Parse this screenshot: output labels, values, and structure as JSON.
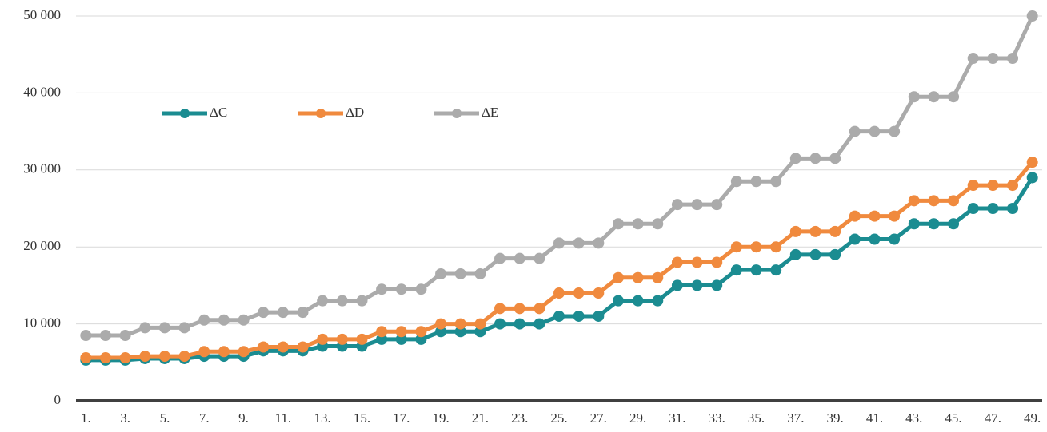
{
  "chart_data": {
    "type": "line",
    "categories": [
      "1.",
      null,
      "3.",
      null,
      "5.",
      null,
      "7.",
      null,
      "9.",
      null,
      "11.",
      null,
      "13.",
      null,
      "15.",
      null,
      "17.",
      null,
      "19.",
      null,
      "21.",
      null,
      "23.",
      null,
      "25.",
      null,
      "27.",
      null,
      "29.",
      null,
      "31.",
      null,
      "33.",
      null,
      "35.",
      null,
      "37.",
      null,
      "39.",
      null,
      "41.",
      null,
      "43.",
      null,
      "45.",
      null,
      "47.",
      null,
      "49."
    ],
    "series": [
      {
        "name": "ΔC",
        "color": "#1b8c91",
        "values": [
          5300,
          5300,
          5300,
          5500,
          5500,
          5500,
          5800,
          5800,
          5800,
          6500,
          6500,
          6500,
          7100,
          7100,
          7100,
          8000,
          8000,
          8000,
          9000,
          9000,
          9000,
          10000,
          10000,
          10000,
          11000,
          11000,
          11000,
          13000,
          13000,
          13000,
          15000,
          15000,
          15000,
          17000,
          17000,
          17000,
          19000,
          19000,
          19000,
          21000,
          21000,
          21000,
          23000,
          23000,
          23000,
          25000,
          25000,
          25000,
          29000
        ]
      },
      {
        "name": "ΔD",
        "color": "#f08a3e",
        "values": [
          5600,
          5600,
          5600,
          5800,
          5800,
          5800,
          6400,
          6400,
          6400,
          7000,
          7000,
          7000,
          8000,
          8000,
          8000,
          9000,
          9000,
          9000,
          10000,
          10000,
          10000,
          12000,
          12000,
          12000,
          14000,
          14000,
          14000,
          16000,
          16000,
          16000,
          18000,
          18000,
          18000,
          20000,
          20000,
          20000,
          22000,
          22000,
          22000,
          24000,
          24000,
          24000,
          26000,
          26000,
          26000,
          28000,
          28000,
          28000,
          31000
        ]
      },
      {
        "name": "ΔE",
        "color": "#ababab",
        "values": [
          8500,
          8500,
          8500,
          9500,
          9500,
          9500,
          10500,
          10500,
          10500,
          11500,
          11500,
          11500,
          13000,
          13000,
          13000,
          14500,
          14500,
          14500,
          16500,
          16500,
          16500,
          18500,
          18500,
          18500,
          20500,
          20500,
          20500,
          23000,
          23000,
          23000,
          25500,
          25500,
          25500,
          28500,
          28500,
          28500,
          31500,
          31500,
          31500,
          35000,
          35000,
          35000,
          39500,
          39500,
          39500,
          44500,
          44500,
          44500,
          50000
        ]
      }
    ],
    "ylim": [
      0,
      50000
    ],
    "yticks": [
      {
        "value": 0,
        "label": "0"
      },
      {
        "value": 10000,
        "label": "10 000"
      },
      {
        "value": 20000,
        "label": "20 000"
      },
      {
        "value": 30000,
        "label": "30 000"
      },
      {
        "value": 40000,
        "label": "40 000"
      },
      {
        "value": 50000,
        "label": "50 000"
      }
    ],
    "grid": true,
    "legend": "top-left"
  }
}
